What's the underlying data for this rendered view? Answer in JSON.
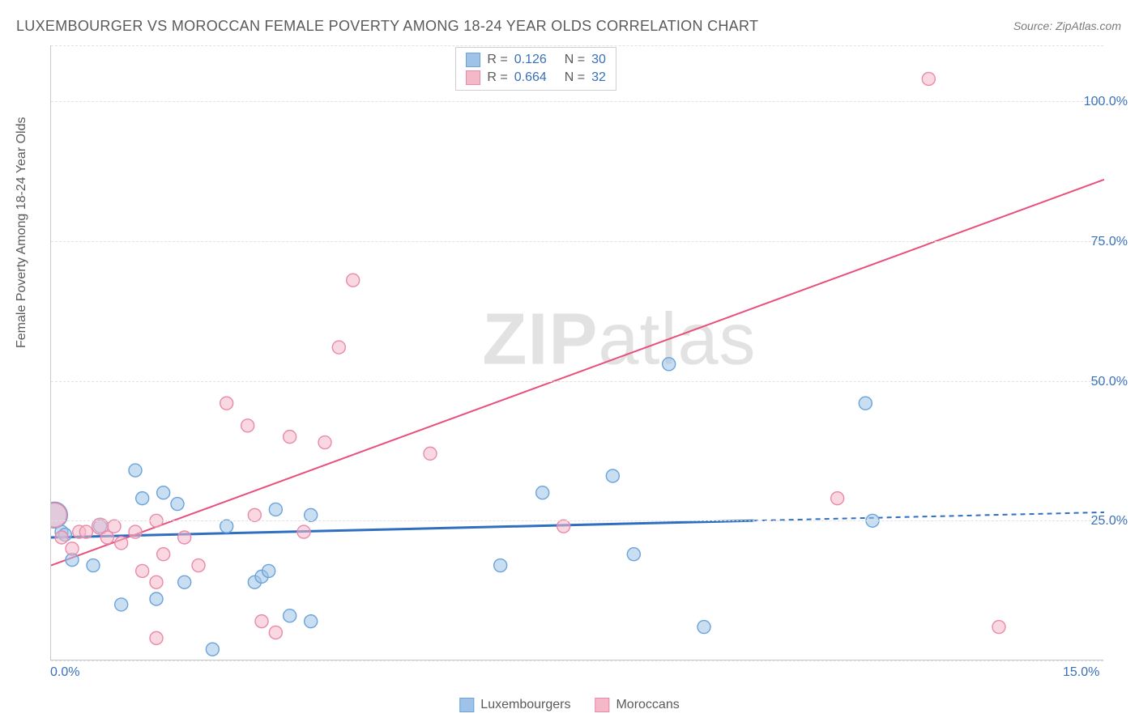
{
  "title": "LUXEMBOURGER VS MOROCCAN FEMALE POVERTY AMONG 18-24 YEAR OLDS CORRELATION CHART",
  "source": "Source: ZipAtlas.com",
  "y_axis_label": "Female Poverty Among 18-24 Year Olds",
  "watermark_bold": "ZIP",
  "watermark_rest": "atlas",
  "chart": {
    "type": "scatter",
    "xlim": [
      0,
      15
    ],
    "ylim": [
      0,
      110
    ],
    "x_ticks": [
      {
        "val": 0,
        "label": "0.0%"
      },
      {
        "val": 15,
        "label": "15.0%"
      }
    ],
    "y_ticks": [
      {
        "val": 25,
        "label": "25.0%"
      },
      {
        "val": 50,
        "label": "50.0%"
      },
      {
        "val": 75,
        "label": "75.0%"
      },
      {
        "val": 100,
        "label": "100.0%"
      }
    ],
    "gridlines_y": [
      0,
      25,
      50,
      75,
      100,
      110
    ],
    "background_color": "#ffffff",
    "grid_color": "#e2e2e2",
    "axis_color": "#c9c9c9",
    "label_color": "#5a5a5a",
    "tick_label_color": "#3870b8",
    "series": [
      {
        "name": "Luxembourgers",
        "color_fill": "#9fc2e8",
        "color_stroke": "#6aa3dc",
        "fill_opacity": 0.55,
        "marker_radius_default": 8,
        "trend": {
          "solid": {
            "x1": 0,
            "y1": 22,
            "x2": 10,
            "y2": 25
          },
          "dashed": {
            "x1": 10,
            "y1": 25,
            "x2": 15,
            "y2": 26.5
          },
          "color": "#2f6fc0",
          "width": 3
        },
        "R": "0.126",
        "N": "30",
        "points": [
          {
            "x": 0.05,
            "y": 26,
            "r": 16
          },
          {
            "x": 0.15,
            "y": 23,
            "r": 8
          },
          {
            "x": 0.2,
            "y": 22.5,
            "r": 8
          },
          {
            "x": 0.3,
            "y": 18,
            "r": 8
          },
          {
            "x": 0.6,
            "y": 17,
            "r": 8
          },
          {
            "x": 0.7,
            "y": 24,
            "r": 8
          },
          {
            "x": 1.0,
            "y": 10,
            "r": 8
          },
          {
            "x": 1.2,
            "y": 34,
            "r": 8
          },
          {
            "x": 1.3,
            "y": 29,
            "r": 8
          },
          {
            "x": 1.5,
            "y": 11,
            "r": 8
          },
          {
            "x": 1.6,
            "y": 30,
            "r": 8
          },
          {
            "x": 1.8,
            "y": 28,
            "r": 8
          },
          {
            "x": 1.9,
            "y": 14,
            "r": 8
          },
          {
            "x": 2.3,
            "y": 2,
            "r": 8
          },
          {
            "x": 2.5,
            "y": 24,
            "r": 8
          },
          {
            "x": 2.9,
            "y": 14,
            "r": 8
          },
          {
            "x": 3.0,
            "y": 15,
            "r": 8
          },
          {
            "x": 3.1,
            "y": 16,
            "r": 8
          },
          {
            "x": 3.2,
            "y": 27,
            "r": 8
          },
          {
            "x": 3.4,
            "y": 8,
            "r": 8
          },
          {
            "x": 3.7,
            "y": 26,
            "r": 8
          },
          {
            "x": 3.7,
            "y": 7,
            "r": 8
          },
          {
            "x": 6.4,
            "y": 17,
            "r": 8
          },
          {
            "x": 7.0,
            "y": 30,
            "r": 8
          },
          {
            "x": 8.0,
            "y": 33,
            "r": 8
          },
          {
            "x": 8.3,
            "y": 19,
            "r": 8
          },
          {
            "x": 8.8,
            "y": 53,
            "r": 8
          },
          {
            "x": 9.3,
            "y": 6,
            "r": 8
          },
          {
            "x": 11.6,
            "y": 46,
            "r": 8
          },
          {
            "x": 11.7,
            "y": 25,
            "r": 8
          }
        ]
      },
      {
        "name": "Moroccans",
        "color_fill": "#f5b8c8",
        "color_stroke": "#e98aa8",
        "fill_opacity": 0.55,
        "marker_radius_default": 8,
        "trend": {
          "solid": {
            "x1": 0,
            "y1": 17,
            "x2": 15,
            "y2": 86
          },
          "dashed": null,
          "color": "#e94f7b",
          "width": 2
        },
        "R": "0.664",
        "N": "32",
        "points": [
          {
            "x": 0.05,
            "y": 26,
            "r": 15
          },
          {
            "x": 0.15,
            "y": 22,
            "r": 8
          },
          {
            "x": 0.3,
            "y": 20,
            "r": 8
          },
          {
            "x": 0.4,
            "y": 23,
            "r": 8
          },
          {
            "x": 0.5,
            "y": 23,
            "r": 8
          },
          {
            "x": 0.7,
            "y": 24,
            "r": 10
          },
          {
            "x": 0.8,
            "y": 22,
            "r": 8
          },
          {
            "x": 0.9,
            "y": 24,
            "r": 8
          },
          {
            "x": 1.0,
            "y": 21,
            "r": 8
          },
          {
            "x": 1.2,
            "y": 23,
            "r": 8
          },
          {
            "x": 1.3,
            "y": 16,
            "r": 8
          },
          {
            "x": 1.5,
            "y": 25,
            "r": 8
          },
          {
            "x": 1.5,
            "y": 14,
            "r": 8
          },
          {
            "x": 1.5,
            "y": 4,
            "r": 8
          },
          {
            "x": 1.6,
            "y": 19,
            "r": 8
          },
          {
            "x": 1.9,
            "y": 22,
            "r": 8
          },
          {
            "x": 2.1,
            "y": 17,
            "r": 8
          },
          {
            "x": 2.5,
            "y": 46,
            "r": 8
          },
          {
            "x": 2.8,
            "y": 42,
            "r": 8
          },
          {
            "x": 2.9,
            "y": 26,
            "r": 8
          },
          {
            "x": 3.0,
            "y": 7,
            "r": 8
          },
          {
            "x": 3.2,
            "y": 5,
            "r": 8
          },
          {
            "x": 3.4,
            "y": 40,
            "r": 8
          },
          {
            "x": 3.6,
            "y": 23,
            "r": 8
          },
          {
            "x": 3.9,
            "y": 39,
            "r": 8
          },
          {
            "x": 4.1,
            "y": 56,
            "r": 8
          },
          {
            "x": 4.3,
            "y": 68,
            "r": 8
          },
          {
            "x": 5.4,
            "y": 37,
            "r": 8
          },
          {
            "x": 7.3,
            "y": 24,
            "r": 8
          },
          {
            "x": 11.2,
            "y": 29,
            "r": 8
          },
          {
            "x": 12.5,
            "y": 104,
            "r": 8
          },
          {
            "x": 13.5,
            "y": 6,
            "r": 8
          }
        ]
      }
    ]
  },
  "stats_box": {
    "rows": [
      {
        "swatch_fill": "#9fc2e8",
        "swatch_stroke": "#6aa3dc",
        "R_label": "R =",
        "R_val": "0.126",
        "N_label": "N =",
        "N_val": "30"
      },
      {
        "swatch_fill": "#f5b8c8",
        "swatch_stroke": "#e98aa8",
        "R_label": "R =",
        "R_val": "0.664",
        "N_label": "N =",
        "N_val": "32"
      }
    ]
  },
  "legend": {
    "items": [
      {
        "swatch_fill": "#9fc2e8",
        "swatch_stroke": "#6aa3dc",
        "label": "Luxembourgers"
      },
      {
        "swatch_fill": "#f5b8c8",
        "swatch_stroke": "#e98aa8",
        "label": "Moroccans"
      }
    ]
  }
}
